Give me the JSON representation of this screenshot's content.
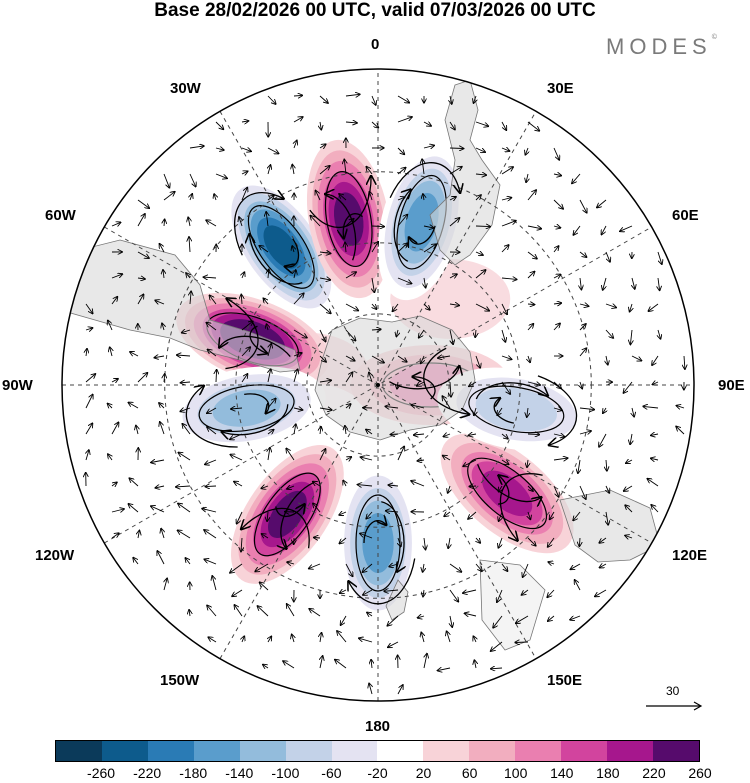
{
  "title": "Base 28/02/2026 00 UTC, valid 07/03/2026 00 UTC",
  "brand": {
    "name": "MODES",
    "mark": "©"
  },
  "longitude_labels": {
    "n": "0",
    "e30": "30E",
    "e60": "60E",
    "e90": "90E",
    "e120": "120E",
    "e150": "150E",
    "s": "180",
    "w150": "150W",
    "w120": "120W",
    "w90": "90W",
    "w60": "60W",
    "w30": "30W"
  },
  "reference_vector": {
    "label": "30"
  },
  "colorbar": {
    "ticks": [
      "-260",
      "-220",
      "-180",
      "-140",
      "-100",
      "-60",
      "-20",
      "20",
      "60",
      "100",
      "140",
      "180",
      "220",
      "260"
    ],
    "colors": [
      "#0b3a5a",
      "#0d5b8c",
      "#2a7bb5",
      "#5a9dcc",
      "#93bcdc",
      "#c3d2e8",
      "#e4e3f2",
      "#ffffff",
      "#f8d3d8",
      "#f2aebf",
      "#ea7fb0",
      "#d2449e",
      "#a6178d",
      "#560b6c"
    ]
  },
  "map_features": {
    "anomalies": [
      {
        "id": "neg-1",
        "value": -260,
        "center_lon": -35,
        "center_lat": -42
      },
      {
        "id": "pos-1",
        "value": 240,
        "center_lon": -10,
        "center_lat": -42
      },
      {
        "id": "neg-2",
        "value": -180,
        "center_lon": 15,
        "center_lat": -42
      },
      {
        "id": "pos-2",
        "value": 260,
        "center_lon": -70,
        "center_lat": -52
      },
      {
        "id": "neg-3",
        "value": -140,
        "center_lon": -100,
        "center_lat": -52
      },
      {
        "id": "pos-3",
        "value": 220,
        "center_lon": -145,
        "center_lat": -45
      },
      {
        "id": "neg-4",
        "value": -180,
        "center_lon": -180,
        "center_lat": -45
      },
      {
        "id": "pos-4",
        "value": 180,
        "center_lon": 130,
        "center_lat": -42
      },
      {
        "id": "pos-5",
        "value": 100,
        "center_lon": 90,
        "center_lat": -75
      },
      {
        "id": "neg-5",
        "value": -100,
        "center_lon": 100,
        "center_lat": -50
      }
    ]
  }
}
